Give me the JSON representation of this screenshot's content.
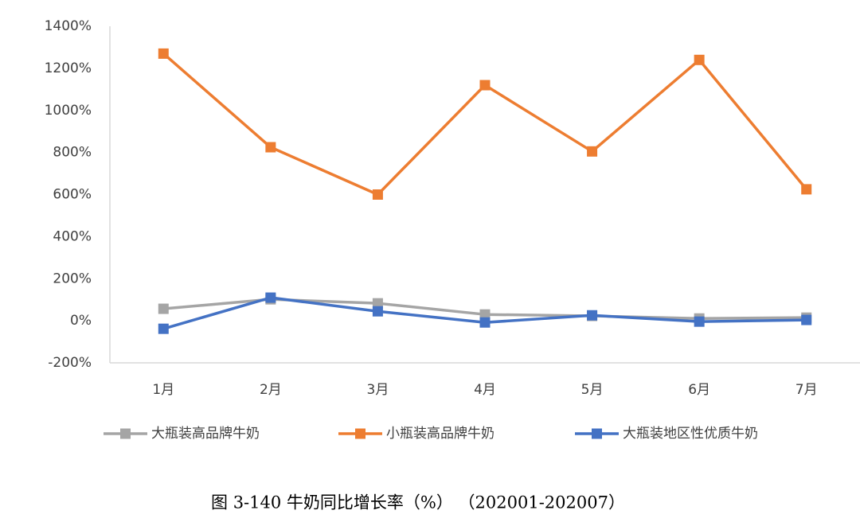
{
  "chart_data": {
    "type": "line",
    "title": "图 3-140  牛奶同比增长率（%）   （202001-202007）",
    "categories": [
      "1月",
      "2月",
      "3月",
      "4月",
      "5月",
      "6月",
      "7月"
    ],
    "series": [
      {
        "name": "大瓶装高品牌牛奶",
        "color": "#a5a5a5",
        "values": [
          57,
          102,
          83,
          30,
          23,
          11,
          15
        ]
      },
      {
        "name": "小瓶装高品牌牛奶",
        "color": "#ed7d31",
        "values": [
          1270,
          825,
          600,
          1120,
          805,
          1240,
          625
        ]
      },
      {
        "name": "大瓶装地区性优质牛奶",
        "color": "#4472c4",
        "values": [
          -38,
          110,
          45,
          -8,
          26,
          -4,
          4
        ]
      }
    ],
    "ylim": [
      -200,
      1400
    ],
    "yticks": [
      {
        "value": -200,
        "label": "-200%"
      },
      {
        "value": 0,
        "label": "0%"
      },
      {
        "value": 200,
        "label": "200%"
      },
      {
        "value": 400,
        "label": "400%"
      },
      {
        "value": 600,
        "label": "600%"
      },
      {
        "value": 800,
        "label": "800%"
      },
      {
        "value": 1000,
        "label": "1000%"
      },
      {
        "value": 1200,
        "label": "1200%"
      },
      {
        "value": 1400,
        "label": "1400%"
      }
    ],
    "grid": false,
    "legend": "bottom"
  }
}
